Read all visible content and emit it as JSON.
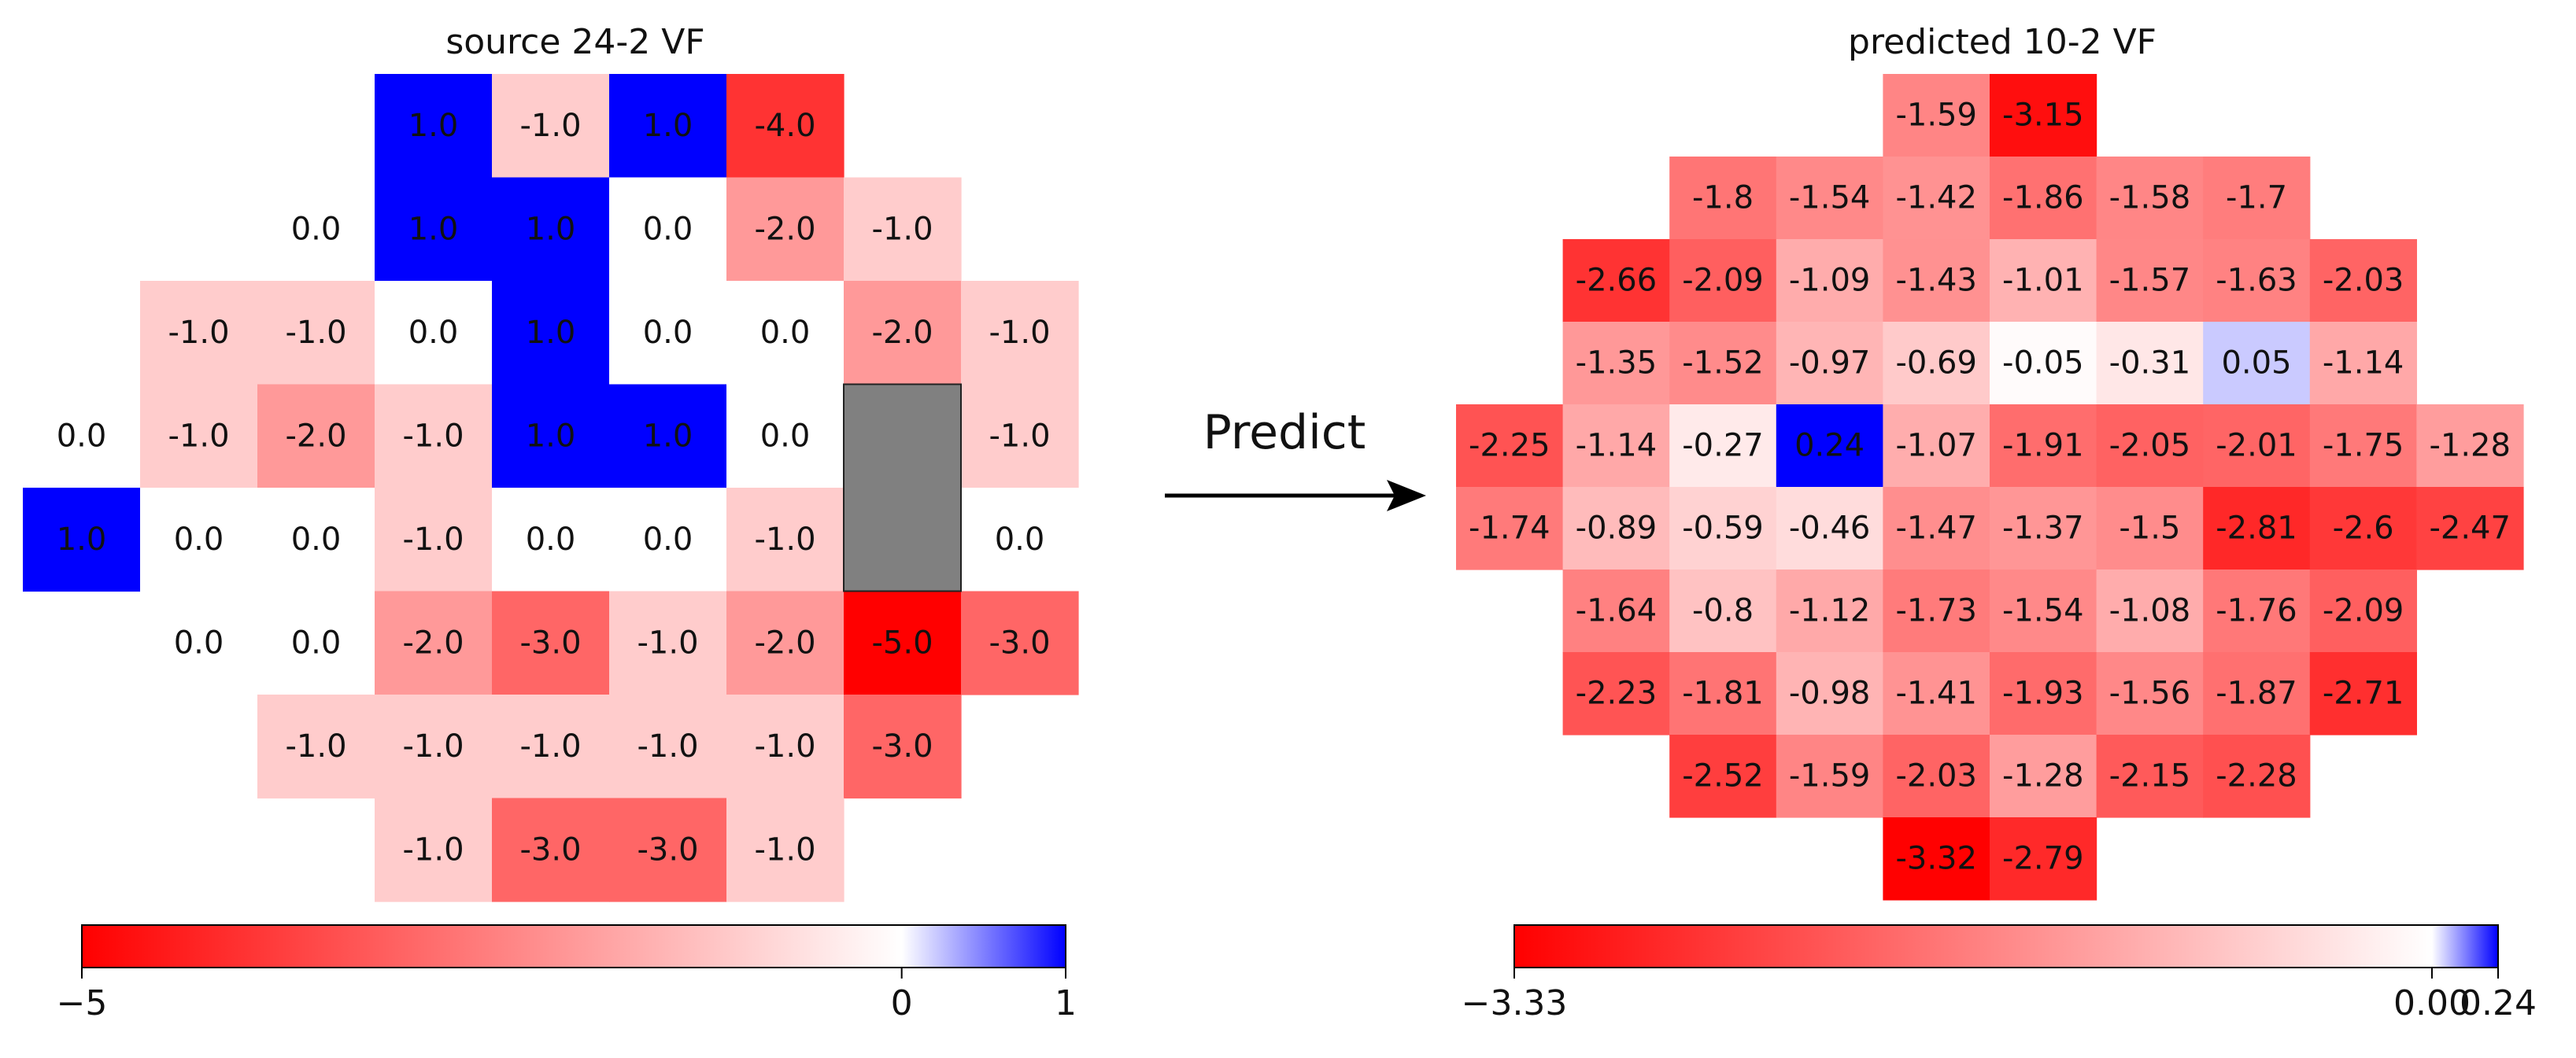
{
  "annotation": {
    "label": "Predict"
  },
  "chart_data": [
    {
      "type": "heatmap",
      "title": "source 24-2 VF",
      "rows": [
        [
          null,
          null,
          null,
          "1.0",
          "-1.0",
          "1.0",
          "-4.0",
          null,
          null
        ],
        [
          null,
          null,
          "0.0",
          "1.0",
          "1.0",
          "0.0",
          "-2.0",
          "-1.0",
          null
        ],
        [
          null,
          "-1.0",
          "-1.0",
          "0.0",
          "1.0",
          "0.0",
          "0.0",
          "-2.0",
          "-1.0"
        ],
        [
          "0.0",
          "-1.0",
          "-2.0",
          "-1.0",
          "1.0",
          "1.0",
          "0.0",
          "blind",
          "-1.0"
        ],
        [
          "1.0",
          "0.0",
          "0.0",
          "-1.0",
          "0.0",
          "0.0",
          "-1.0",
          "blind",
          "0.0"
        ],
        [
          null,
          "0.0",
          "0.0",
          "-2.0",
          "-3.0",
          "-1.0",
          "-2.0",
          "-5.0",
          "-3.0"
        ],
        [
          null,
          null,
          "-1.0",
          "-1.0",
          "-1.0",
          "-1.0",
          "-1.0",
          "-3.0",
          null
        ],
        [
          null,
          null,
          null,
          "-1.0",
          "-3.0",
          "-3.0",
          "-1.0",
          null,
          null
        ]
      ],
      "blind_spot_color": "#808080",
      "colorbar": {
        "min": -5,
        "center": 0,
        "max": 1,
        "tick_labels": [
          "−5",
          "0",
          "1"
        ],
        "tick_values": [
          -5,
          0,
          1
        ],
        "colors": {
          "low": "#ff0000",
          "mid": "#ffffff",
          "high": "#0000ff"
        }
      }
    },
    {
      "type": "heatmap",
      "title": "predicted 10-2 VF",
      "rows": [
        [
          null,
          null,
          null,
          null,
          "-1.59",
          "-3.15",
          null,
          null,
          null,
          null
        ],
        [
          null,
          null,
          "-1.8",
          "-1.54",
          "-1.42",
          "-1.86",
          "-1.58",
          "-1.7",
          null,
          null
        ],
        [
          null,
          "-2.66",
          "-2.09",
          "-1.09",
          "-1.43",
          "-1.01",
          "-1.57",
          "-1.63",
          "-2.03",
          null
        ],
        [
          null,
          "-1.35",
          "-1.52",
          "-0.97",
          "-0.69",
          "-0.05",
          "-0.31",
          "0.05",
          "-1.14",
          null
        ],
        [
          "-2.25",
          "-1.14",
          "-0.27",
          "0.24",
          "-1.07",
          "-1.91",
          "-2.05",
          "-2.01",
          "-1.75",
          "-1.28"
        ],
        [
          "-1.74",
          "-0.89",
          "-0.59",
          "-0.46",
          "-1.47",
          "-1.37",
          "-1.5",
          "-2.81",
          "-2.6",
          "-2.47"
        ],
        [
          null,
          "-1.64",
          "-0.8",
          "-1.12",
          "-1.73",
          "-1.54",
          "-1.08",
          "-1.76",
          "-2.09",
          null
        ],
        [
          null,
          "-2.23",
          "-1.81",
          "-0.98",
          "-1.41",
          "-1.93",
          "-1.56",
          "-1.87",
          "-2.71",
          null
        ],
        [
          null,
          null,
          "-2.52",
          "-1.59",
          "-2.03",
          "-1.28",
          "-2.15",
          "-2.28",
          null,
          null
        ],
        [
          null,
          null,
          null,
          null,
          "-3.32",
          "-2.79",
          null,
          null,
          null,
          null
        ]
      ],
      "colorbar": {
        "min": -3.33,
        "center": 0,
        "max": 0.24,
        "tick_labels": [
          "−3.33",
          "0.00",
          "0.24"
        ],
        "tick_values": [
          -3.33,
          0,
          0.24
        ],
        "colors": {
          "low": "#ff0000",
          "mid": "#ffffff",
          "high": "#0000ff"
        }
      }
    }
  ]
}
